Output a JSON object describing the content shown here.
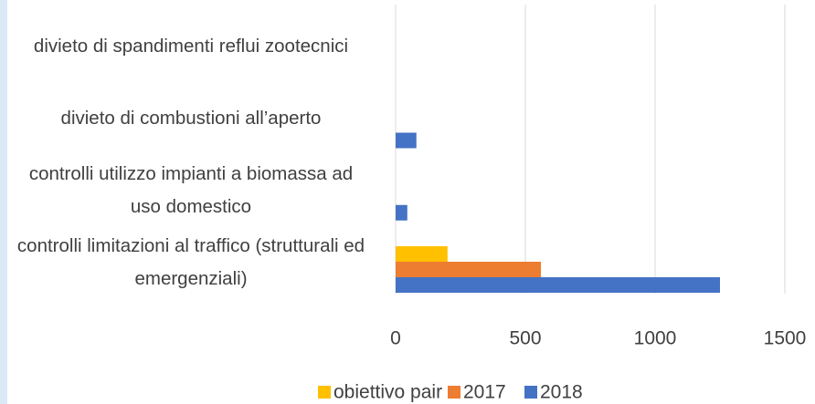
{
  "chart_data": {
    "type": "bar",
    "orientation": "horizontal",
    "categories": [
      "divieto di spandimenti reflui zootecnici",
      "divieto di combustioni all’aperto",
      "controlli utilizzo impianti a biomassa ad uso domestico",
      "controlli limitazioni al traffico (strutturali ed emergenziali)"
    ],
    "series": [
      {
        "name": "obiettivo pair",
        "color": "#FFC000",
        "values": [
          null,
          null,
          null,
          200
        ]
      },
      {
        "name": "2017",
        "color": "#ED7D31",
        "values": [
          null,
          null,
          null,
          560
        ]
      },
      {
        "name": "2018",
        "color": "#4472C4",
        "values": [
          null,
          80,
          45,
          1250
        ]
      }
    ],
    "xlim": [
      0,
      1500
    ],
    "xticks": [
      0,
      500,
      1000,
      1500
    ],
    "grid": true,
    "legend": "bottom"
  }
}
